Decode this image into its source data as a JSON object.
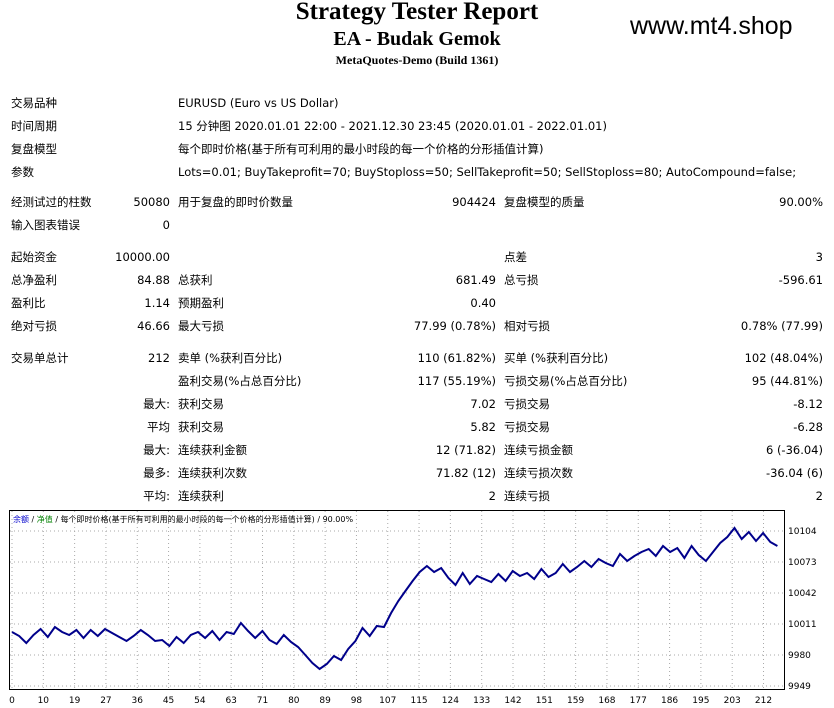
{
  "header": {
    "title": "Strategy Tester Report",
    "subtitle": "EA - Budak Gemok",
    "build": "MetaQuotes-Demo (Build 1361)",
    "watermark": "www.mt4.shop"
  },
  "info": {
    "symbol_label": "交易品种",
    "symbol_value": "EURUSD (Euro vs US Dollar)",
    "period_label": "时间周期",
    "period_value": "15 分钟图 2020.01.01 22:00 - 2021.12.30 23:45 (2020.01.01 - 2022.01.01)",
    "model_label": "复盘模型",
    "model_value": "每个即时价格(基于所有可利用的最小时段的每一个价格的分形插值计算)",
    "params_label": "参数",
    "params_value": "Lots=0.01; BuyTakeprofit=70; BuyStoploss=50; SellTakeprofit=50; SellStoploss=80; AutoCompound=false;"
  },
  "stats": {
    "bars_label": "经测试过的柱数",
    "bars_value": "50080",
    "ticks_label": "用于复盘的即时价数量",
    "ticks_value": "904424",
    "quality_label": "复盘模型的质量",
    "quality_value": "90.00%",
    "mismatch_label": "输入图表错误",
    "mismatch_value": "0",
    "deposit_label": "起始资金",
    "deposit_value": "10000.00",
    "spread_label": "点差",
    "spread_value": "3",
    "netprofit_label": "总净盈利",
    "netprofit_value": "84.88",
    "grossprofit_label": "总获利",
    "grossprofit_value": "681.49",
    "grossloss_label": "总亏损",
    "grossloss_value": "-596.61",
    "pf_label": "盈利比",
    "pf_value": "1.14",
    "payoff_label": "预期盈利",
    "payoff_value": "0.40",
    "absdd_label": "绝对亏损",
    "absdd_value": "46.66",
    "maxdd_label": "最大亏损",
    "maxdd_value": "77.99 (0.78%)",
    "reldd_label": "相对亏损",
    "reldd_value": "0.78% (77.99)",
    "trades_label": "交易单总计",
    "trades_value": "212",
    "short_label": "卖单 (%获利百分比)",
    "short_value": "110 (61.82%)",
    "long_label": "买单 (%获利百分比)",
    "long_value": "102 (48.04%)",
    "profit_trades_label": "盈利交易(%占总百分比)",
    "profit_trades_value": "117 (55.19%)",
    "loss_trades_label": "亏损交易(%占总百分比)",
    "loss_trades_value": "95 (44.81%)",
    "largest_prefix": "最大:",
    "largest_profit_label": "获利交易",
    "largest_profit_value": "7.02",
    "largest_loss_label": "亏损交易",
    "largest_loss_value": "-8.12",
    "average_prefix": "平均",
    "average_profit_label": "获利交易",
    "average_profit_value": "5.82",
    "average_loss_label": "亏损交易",
    "average_loss_value": "-6.28",
    "maxcons_prefix": "最大:",
    "maxcons_wins_label": "连续获利金额",
    "maxcons_wins_value": "12 (71.82)",
    "maxcons_losses_label": "连续亏损金额",
    "maxcons_losses_value": "6 (-36.04)",
    "maxconsamt_prefix": "最多:",
    "maxconsamt_wins_label": "连续获利次数",
    "maxconsamt_wins_value": "71.82 (12)",
    "maxconsamt_losses_label": "连续亏损次数",
    "maxconsamt_losses_value": "-36.04 (6)",
    "avgcons_prefix": "平均:",
    "avgcons_wins_label": "连续获利",
    "avgcons_wins_value": "2",
    "avgcons_losses_label": "连续亏损",
    "avgcons_losses_value": "2"
  },
  "colors": {
    "line": "#00008b",
    "legend_balance": "#0000cc",
    "legend_equity": "#008000",
    "grid": "#a9a9a9"
  },
  "chart_data": {
    "type": "line",
    "legend": {
      "balance": "余额",
      "sep1": " / ",
      "equity": "净值",
      "sep2": " / 每个即时价格(基于所有可利用的最小时段的每一个价格的分形插值计算) / 90.00%"
    },
    "xticks": [
      "0",
      "10",
      "19",
      "27",
      "36",
      "45",
      "54",
      "63",
      "71",
      "80",
      "89",
      "98",
      "107",
      "115",
      "124",
      "133",
      "142",
      "151",
      "159",
      "168",
      "177",
      "186",
      "195",
      "203",
      "212"
    ],
    "yticks": [
      "10104",
      "10073",
      "10042",
      "10011",
      "9980",
      "9949"
    ],
    "xlim": [
      0,
      215
    ],
    "ylim": [
      9949,
      10112
    ],
    "series": [
      {
        "x": [
          0,
          2,
          4,
          6,
          8,
          10,
          12,
          14,
          16,
          18,
          20,
          22,
          24,
          26,
          28,
          30,
          32,
          34,
          36,
          38,
          40,
          42,
          44,
          46,
          48,
          50,
          52,
          54,
          56,
          58,
          60,
          62,
          64,
          66,
          68,
          70,
          72,
          74,
          76,
          78,
          80,
          82,
          84,
          86,
          88,
          90,
          92,
          94,
          96,
          98,
          100,
          102,
          104,
          106,
          108,
          110,
          112,
          114,
          116,
          118,
          120,
          122,
          124,
          126,
          128,
          130,
          132,
          134,
          136,
          138,
          140,
          142,
          144,
          146,
          148,
          150,
          152,
          154,
          156,
          158,
          160,
          162,
          164,
          166,
          168,
          170,
          172,
          174,
          176,
          178,
          180,
          182,
          184,
          186,
          188,
          190,
          192,
          194,
          196,
          198,
          200,
          202,
          204,
          206,
          208,
          210,
          212,
          214
        ],
        "values": [
          10003,
          9999,
          9992,
          10000,
          10006,
          9998,
          10008,
          10003,
          10000,
          10005,
          9997,
          10005,
          9999,
          10006,
          10002,
          9998,
          9994,
          9999,
          10005,
          10000,
          9994,
          9995,
          9989,
          9998,
          9992,
          10000,
          10003,
          9997,
          10004,
          9995,
          10003,
          10001,
          10012,
          10004,
          9997,
          10004,
          9995,
          9991,
          10000,
          9993,
          9988,
          9980,
          9972,
          9966,
          9971,
          9979,
          9975,
          9986,
          9994,
          10007,
          9999,
          10009,
          10008,
          10022,
          10034,
          10044,
          10054,
          10063,
          10069,
          10063,
          10067,
          10057,
          10050,
          10062,
          10051,
          10059,
          10056,
          10053,
          10061,
          10054,
          10064,
          10059,
          10062,
          10056,
          10066,
          10058,
          10062,
          10071,
          10063,
          10068,
          10074,
          10068,
          10076,
          10072,
          10069,
          10081,
          10074,
          10079,
          10083,
          10086,
          10079,
          10089,
          10083,
          10087,
          10077,
          10089,
          10080,
          10074,
          10083,
          10092,
          10098,
          10107,
          10096,
          10103,
          10094,
          10102,
          10093,
          10089
        ]
      }
    ]
  }
}
